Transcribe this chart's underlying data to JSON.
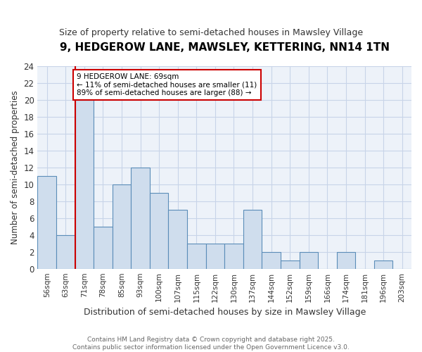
{
  "title": "9, HEDGEROW LANE, MAWSLEY, KETTERING, NN14 1TN",
  "subtitle": "Size of property relative to semi-detached houses in Mawsley Village",
  "xlabel": "Distribution of semi-detached houses by size in Mawsley Village",
  "ylabel": "Number of semi-detached properties",
  "bin_labels": [
    "56sqm",
    "63sqm",
    "71sqm",
    "78sqm",
    "85sqm",
    "93sqm",
    "100sqm",
    "107sqm",
    "115sqm",
    "122sqm",
    "130sqm",
    "137sqm",
    "144sqm",
    "152sqm",
    "159sqm",
    "166sqm",
    "174sqm",
    "181sqm",
    "196sqm",
    "203sqm"
  ],
  "bin_values": [
    11,
    4,
    20,
    5,
    10,
    12,
    9,
    7,
    3,
    3,
    3,
    7,
    2,
    1,
    2,
    0,
    2,
    0,
    1,
    0
  ],
  "bar_color": "#cfdded",
  "bar_edge_color": "#5b8db8",
  "red_line_color": "#cc0000",
  "annotation_box_edge": "#cc0000",
  "annotation_text": "9 HEDGEROW LANE: 69sqm\n← 11% of semi-detached houses are smaller (11)\n89% of semi-detached houses are larger (88) →",
  "footer_text": "Contains HM Land Registry data © Crown copyright and database right 2025.\nContains public sector information licensed under the Open Government Licence v3.0.",
  "ylim": [
    0,
    24
  ],
  "yticks": [
    0,
    2,
    4,
    6,
    8,
    10,
    12,
    14,
    16,
    18,
    20,
    22,
    24
  ],
  "bg_color": "#ffffff",
  "plot_bg_color": "#edf2f9",
  "grid_color": "#c8d4e8",
  "title_fontsize": 11,
  "subtitle_fontsize": 9
}
